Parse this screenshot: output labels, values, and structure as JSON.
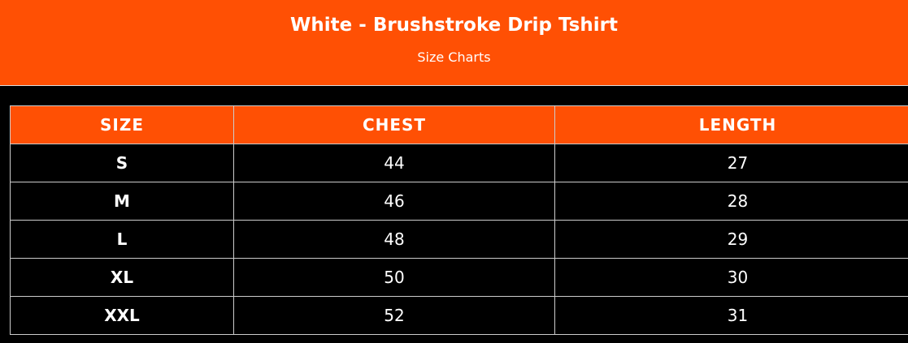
{
  "header": {
    "title": "White - Brushstroke Drip Tshirt",
    "subtitle": "Size Charts"
  },
  "table": {
    "columns": [
      "SIZE",
      "CHEST",
      "LENGTH"
    ],
    "rows": [
      [
        "S",
        "44",
        "27"
      ],
      [
        "M",
        "46",
        "28"
      ],
      [
        "L",
        "48",
        "29"
      ],
      [
        "XL",
        "50",
        "30"
      ],
      [
        "XXL",
        "52",
        "31"
      ]
    ]
  },
  "colors": {
    "accent": "#ff5004",
    "background": "#000000"
  }
}
